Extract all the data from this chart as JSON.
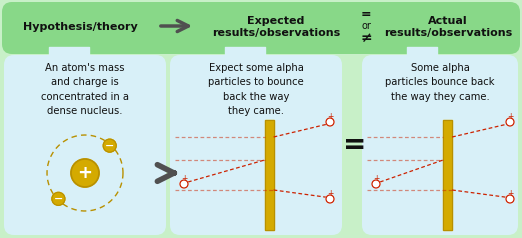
{
  "bg_outer": "#c8f0c8",
  "bg_header": "#88d888",
  "bg_panel": "#d8f0f8",
  "gold_fill": "#d4aa00",
  "gold_border": "#b89000",
  "red_col": "#cc2200",
  "text_col": "#111111",
  "arrow_col": "#505050",
  "panel1_title": "Hypothesis/theory",
  "panel2_title": "Expected\nresults/observations",
  "panel3_title": "Actual\nresults/observations",
  "panel1_text": "An atom's mass\nand charge is\nconcentrated in a\ndense nucleus.",
  "panel2_text": "Expect some alpha\nparticles to bounce\nback the way\nthey came.",
  "panel3_text": "Some alpha\nparticles bounce back\nthe way they came.",
  "figw": 5.22,
  "figh": 2.38,
  "dpi": 100
}
